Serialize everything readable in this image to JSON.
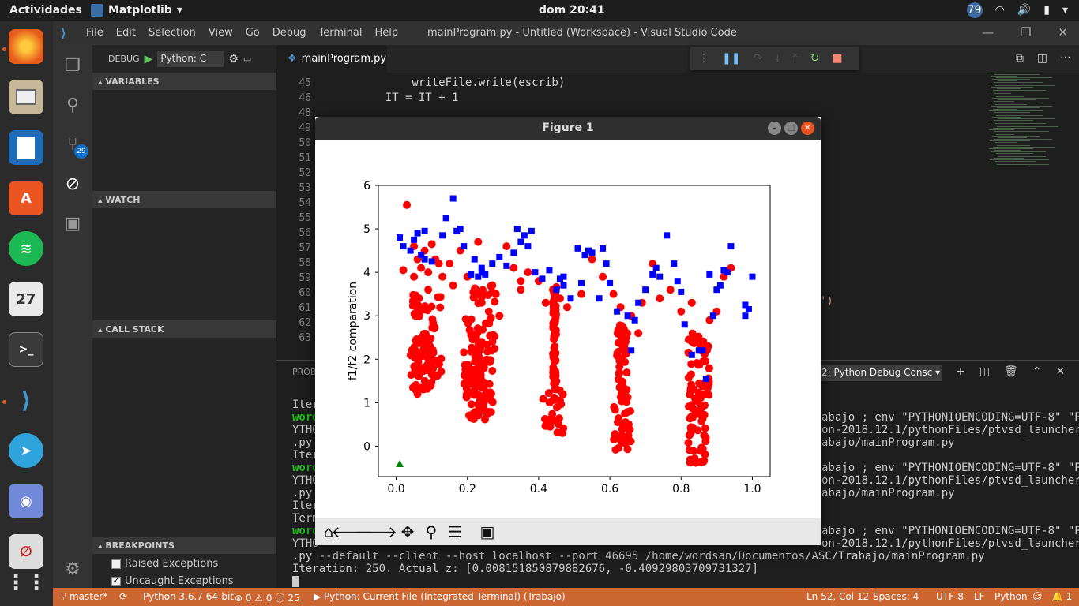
{
  "topbar": {
    "activities": "Actividades",
    "app": "Matplotlib",
    "clock": "dom 20:41",
    "notify_count": "79"
  },
  "dock": {
    "calendar_day": "27"
  },
  "window": {
    "menu": [
      "File",
      "Edit",
      "Selection",
      "View",
      "Go",
      "Debug",
      "Terminal",
      "Help"
    ],
    "title": "mainProgram.py - Untitled (Workspace) - Visual Studio Code"
  },
  "activity": {
    "scm_badge": "29"
  },
  "sidebar": {
    "debug_label": "DEBUG",
    "config": "Python: C",
    "sections": {
      "variables": "VARIABLES",
      "watch": "WATCH",
      "call_stack": "CALL STACK",
      "breakpoints": "BREAKPOINTS"
    },
    "breakpoints": [
      {
        "label": "Raised Exceptions",
        "checked": false
      },
      {
        "label": "Uncaught Exceptions",
        "checked": true
      }
    ]
  },
  "editor": {
    "tab": "mainProgram.py",
    "lines": [
      {
        "n": "45",
        "code": "        writeFile.write(escrib)"
      },
      {
        "n": "46",
        "code": "    IT = IT + 1"
      },
      {
        "n": "48",
        "code": ""
      },
      {
        "n": "49",
        "code": ""
      },
      {
        "n": "50",
        "code": ""
      },
      {
        "n": "51",
        "code": ""
      },
      {
        "n": "52",
        "code": ""
      },
      {
        "n": "53",
        "code": ""
      },
      {
        "n": "54",
        "code": ""
      },
      {
        "n": "55",
        "code": ""
      },
      {
        "n": "56",
        "code": ""
      },
      {
        "n": "57",
        "code": ""
      },
      {
        "n": "58",
        "code": ""
      },
      {
        "n": "59",
        "code": ""
      },
      {
        "n": "60",
        "code": ""
      },
      {
        "n": "61",
        "code": ""
      },
      {
        "n": "62",
        "code": ""
      },
      {
        "n": "63",
        "code": ""
      }
    ],
    "peek_fragment": "')"
  },
  "panel": {
    "header": "PROBL",
    "terminal_select": "2: Python Debug Consc",
    "lines": [
      {
        "text": "Iter",
        "green": false
      },
      {
        "text": "word",
        "green": true,
        "right": "abajo ; env \"PYTHONIOENCODING=UTF-8\" \"P"
      },
      {
        "text": "YTHO",
        "green": false,
        "right": "on-2018.12.1/pythonFiles/ptvsd_launcher"
      },
      {
        "text": ".py ",
        "green": false,
        "right": "abajo/mainProgram.py"
      },
      {
        "text": "Iter",
        "green": false
      },
      {
        "text": "word",
        "green": true,
        "right": "abajo ; env \"PYTHONIOENCODING=UTF-8\" \"P"
      },
      {
        "text": "YTHO",
        "green": false,
        "right": "on-2018.12.1/pythonFiles/ptvsd_launcher"
      },
      {
        "text": ".py ",
        "green": false,
        "right": "abajo/mainProgram.py"
      },
      {
        "text": "Iter",
        "green": false
      },
      {
        "text": "Term",
        "green": false
      },
      {
        "text": "word",
        "green": true,
        "right": "abajo ; env \"PYTHONIOENCODING=UTF-8\" \"P"
      },
      {
        "text": "YTHO",
        "green": false,
        "right": "on-2018.12.1/pythonFiles/ptvsd_launcher"
      }
    ],
    "full_lines": [
      ".py --default --client --host localhost --port 46695 /home/wordsan/Documentos/ASC/Trabajo/mainProgram.py",
      "Iteration: 250. Actual z: [0.008151850879882676, -0.40929803709731327]"
    ]
  },
  "statusbar": {
    "branch": "master*",
    "interpreter": "Python 3.6.7 64-bit",
    "problems": "0",
    "warnings": "0",
    "info": "25",
    "launch": "Python: Current File (Integrated Terminal) (Trabajo)",
    "position": "Ln 52, Col 12",
    "spaces": "Spaces: 4",
    "encoding": "UTF-8",
    "eol": "LF",
    "language": "Python",
    "bell_count": "1"
  },
  "figure": {
    "title": "Figure 1"
  },
  "chart_data": {
    "type": "scatter",
    "title": "",
    "xlabel": "",
    "ylabel": "f1/f2 comparation",
    "xlim": [
      -0.05,
      1.05
    ],
    "ylim": [
      -0.7,
      6.0
    ],
    "xticks": [
      "0.0",
      "0.2",
      "0.4",
      "0.6",
      "0.8",
      "1.0"
    ],
    "yticks": [
      "0",
      "1",
      "2",
      "3",
      "4",
      "5",
      "6"
    ],
    "colors": {
      "red": "#ff0000",
      "blue": "#0000ff",
      "green": "#008000"
    },
    "series": [
      {
        "marker": "circle",
        "color": "#ff0000",
        "points": [
          [
            0.03,
            5.55
          ],
          [
            0.05,
            4.6
          ],
          [
            0.06,
            4.3
          ],
          [
            0.07,
            4.1
          ],
          [
            0.08,
            4.5
          ],
          [
            0.09,
            4.0
          ],
          [
            0.1,
            4.65
          ],
          [
            0.11,
            4.3
          ],
          [
            0.13,
            3.9
          ],
          [
            0.15,
            4.2
          ],
          [
            0.16,
            3.7
          ],
          [
            0.18,
            4.5
          ],
          [
            0.2,
            3.9
          ],
          [
            0.22,
            3.6
          ],
          [
            0.23,
            4.7
          ],
          [
            0.24,
            3.3
          ],
          [
            0.26,
            3.1
          ],
          [
            0.28,
            3.5
          ],
          [
            0.29,
            3.0
          ],
          [
            0.31,
            4.6
          ],
          [
            0.33,
            4.1
          ],
          [
            0.35,
            3.6
          ],
          [
            0.37,
            4.0
          ],
          [
            0.4,
            3.8
          ],
          [
            0.42,
            3.3
          ],
          [
            0.44,
            3.6
          ],
          [
            0.46,
            3.4
          ],
          [
            0.48,
            3.2
          ],
          [
            0.55,
            4.3
          ],
          [
            0.58,
            3.9
          ],
          [
            0.61,
            3.5
          ],
          [
            0.63,
            3.2
          ],
          [
            0.68,
            2.6
          ],
          [
            0.69,
            3.3
          ],
          [
            0.72,
            4.2
          ],
          [
            0.74,
            3.4
          ],
          [
            0.77,
            3.6
          ],
          [
            0.8,
            3.1
          ],
          [
            0.83,
            3.3
          ],
          [
            0.86,
            2.4
          ],
          [
            0.88,
            2.9
          ],
          [
            0.9,
            3.1
          ],
          [
            0.92,
            3.9
          ],
          [
            0.94,
            4.1
          ],
          [
            0.02,
            4.05
          ],
          [
            0.05,
            3.9
          ],
          [
            0.09,
            3.6
          ],
          [
            0.12,
            4.2
          ],
          [
            0.27,
            3.7
          ],
          [
            0.35,
            3.8
          ],
          [
            0.52,
            3.5
          ],
          [
            0.66,
            3.0
          ]
        ],
        "strips": [
          {
            "x": [
              0.04,
              0.13
            ],
            "y": [
              1.3,
              3.5
            ]
          },
          {
            "x": [
              0.05,
              0.11
            ],
            "y": [
              1.2,
              2.6
            ]
          },
          {
            "x": [
              0.19,
              0.28
            ],
            "y": [
              0.7,
              3.7
            ]
          },
          {
            "x": [
              0.21,
              0.27
            ],
            "y": [
              0.6,
              2.6
            ]
          },
          {
            "x": [
              0.41,
              0.47
            ],
            "y": [
              0.3,
              1.3
            ]
          },
          {
            "x": [
              0.44,
              0.45
            ],
            "y": [
              1.3,
              3.7
            ]
          },
          {
            "x": [
              0.61,
              0.66
            ],
            "y": [
              -0.1,
              1.1
            ]
          },
          {
            "x": [
              0.62,
              0.65
            ],
            "y": [
              1.1,
              2.8
            ]
          },
          {
            "x": [
              0.82,
              0.87
            ],
            "y": [
              -0.4,
              1.0
            ]
          },
          {
            "x": [
              0.82,
              0.88
            ],
            "y": [
              1.0,
              2.7
            ]
          }
        ]
      },
      {
        "marker": "square",
        "color": "#0000ff",
        "points": [
          [
            0.01,
            4.8
          ],
          [
            0.02,
            4.6
          ],
          [
            0.04,
            4.5
          ],
          [
            0.05,
            4.75
          ],
          [
            0.06,
            4.9
          ],
          [
            0.07,
            4.4
          ],
          [
            0.08,
            4.3
          ],
          [
            0.1,
            4.25
          ],
          [
            0.13,
            4.85
          ],
          [
            0.14,
            5.25
          ],
          [
            0.16,
            5.7
          ],
          [
            0.17,
            4.95
          ],
          [
            0.18,
            5.0
          ],
          [
            0.19,
            4.6
          ],
          [
            0.21,
            3.95
          ],
          [
            0.22,
            4.3
          ],
          [
            0.23,
            3.9
          ],
          [
            0.24,
            4.0
          ],
          [
            0.25,
            3.95
          ],
          [
            0.27,
            4.2
          ],
          [
            0.29,
            4.35
          ],
          [
            0.31,
            4.15
          ],
          [
            0.33,
            4.45
          ],
          [
            0.34,
            5.0
          ],
          [
            0.35,
            4.7
          ],
          [
            0.36,
            4.85
          ],
          [
            0.37,
            4.6
          ],
          [
            0.38,
            4.95
          ],
          [
            0.39,
            4.0
          ],
          [
            0.41,
            3.85
          ],
          [
            0.43,
            4.05
          ],
          [
            0.45,
            3.6
          ],
          [
            0.46,
            3.85
          ],
          [
            0.47,
            3.7
          ],
          [
            0.49,
            3.4
          ],
          [
            0.51,
            4.55
          ],
          [
            0.52,
            3.75
          ],
          [
            0.53,
            4.4
          ],
          [
            0.54,
            4.5
          ],
          [
            0.55,
            4.45
          ],
          [
            0.57,
            3.4
          ],
          [
            0.58,
            4.55
          ],
          [
            0.59,
            4.2
          ],
          [
            0.6,
            3.75
          ],
          [
            0.62,
            3.1
          ],
          [
            0.65,
            3.0
          ],
          [
            0.66,
            2.2
          ],
          [
            0.67,
            2.9
          ],
          [
            0.68,
            3.3
          ],
          [
            0.7,
            3.6
          ],
          [
            0.72,
            3.95
          ],
          [
            0.73,
            4.1
          ],
          [
            0.74,
            3.9
          ],
          [
            0.76,
            4.85
          ],
          [
            0.78,
            4.2
          ],
          [
            0.79,
            3.8
          ],
          [
            0.8,
            3.55
          ],
          [
            0.81,
            2.8
          ],
          [
            0.83,
            2.1
          ],
          [
            0.85,
            2.2
          ],
          [
            0.86,
            2.2
          ],
          [
            0.87,
            1.55
          ],
          [
            0.88,
            3.95
          ],
          [
            0.89,
            3.0
          ],
          [
            0.9,
            3.6
          ],
          [
            0.91,
            3.7
          ],
          [
            0.92,
            4.05
          ],
          [
            0.93,
            4.0
          ],
          [
            0.94,
            4.6
          ],
          [
            0.98,
            3.25
          ],
          [
            0.99,
            3.15
          ],
          [
            1.0,
            3.9
          ],
          [
            0.98,
            3.0
          ],
          [
            0.47,
            3.9
          ],
          [
            0.24,
            4.1
          ],
          [
            0.08,
            4.95
          ]
        ]
      },
      {
        "marker": "triangle",
        "color": "#008000",
        "points": [
          [
            0.01,
            -0.41
          ]
        ]
      }
    ]
  }
}
